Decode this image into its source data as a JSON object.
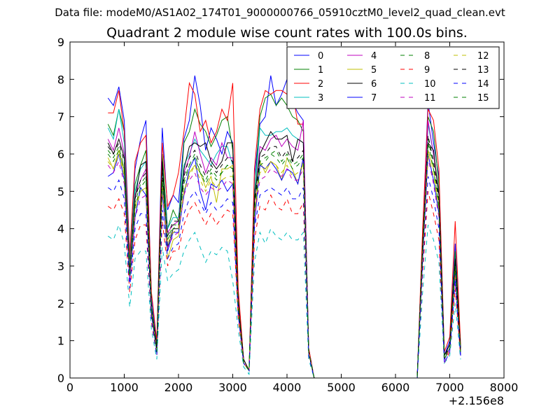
{
  "figure": {
    "suptitle": "Data file: modeM0/AS1A02_174T01_9000000766_05910cztM0_level2_quad_clean.evt"
  },
  "chart_data": {
    "type": "line",
    "title": "Quadrant 2 module wise count rates with 100.0s bins.",
    "xlabel": "",
    "ylabel": "",
    "xlim": [
      0,
      8000
    ],
    "ylim": [
      0,
      9
    ],
    "x_offset_label": "+2.156e8",
    "xticks": [
      0,
      1000,
      2000,
      3000,
      4000,
      5000,
      6000,
      7000,
      8000
    ],
    "xtick_labels": [
      "0",
      "1000",
      "2000",
      "3000",
      "4000",
      "5000",
      "6000",
      "7000",
      "8000"
    ],
    "yticks": [
      0,
      1,
      2,
      3,
      4,
      5,
      6,
      7,
      8,
      9
    ],
    "ytick_labels": [
      "0",
      "1",
      "2",
      "3",
      "4",
      "5",
      "6",
      "7",
      "8",
      "9"
    ],
    "grid": false,
    "legend_position": "top-right",
    "legend_columns": 4,
    "x": [
      700,
      800,
      900,
      1000,
      1100,
      1200,
      1300,
      1400,
      1500,
      1600,
      1700,
      1800,
      1900,
      2000,
      2100,
      2200,
      2300,
      2400,
      2500,
      2600,
      2700,
      2800,
      2900,
      3000,
      3100,
      3200,
      3300,
      3400,
      3500,
      3600,
      3700,
      3800,
      3900,
      4000,
      4100,
      4200,
      4300,
      4400,
      4500,
      4600,
      6400,
      6500,
      6600,
      6700,
      6800,
      6900,
      7000,
      7100,
      7200
    ],
    "series": [
      {
        "name": "0",
        "color": "#0000ff",
        "dash": "solid",
        "values": [
          7.5,
          7.3,
          7.8,
          6.9,
          3.3,
          5.6,
          6.4,
          6.9,
          2.2,
          0.9,
          6.7,
          4.5,
          4.9,
          4.7,
          6.4,
          6.9,
          8.1,
          7.3,
          6.1,
          6.7,
          6.4,
          6.0,
          6.6,
          6.3,
          2.3,
          0.5,
          0.2,
          5.4,
          6.8,
          7.0,
          8.1,
          7.3,
          7.6,
          8.0,
          7.4,
          7.1,
          6.9,
          0.8,
          0.0,
          0.0,
          0.0,
          3.8,
          7.4,
          6.3,
          5.4,
          0.6,
          1.0,
          3.6,
          0.8
        ]
      },
      {
        "name": "1",
        "color": "#008000",
        "dash": "solid",
        "values": [
          6.8,
          6.5,
          7.2,
          6.6,
          3.1,
          5.2,
          5.7,
          6.1,
          2.0,
          0.8,
          6.0,
          4.0,
          4.5,
          4.2,
          6.3,
          6.6,
          7.2,
          6.8,
          6.6,
          6.2,
          6.5,
          6.9,
          7.0,
          6.1,
          2.1,
          0.5,
          0.2,
          4.9,
          7.0,
          7.5,
          7.6,
          7.3,
          7.5,
          7.3,
          7.0,
          6.9,
          6.6,
          0.7,
          0.0,
          0.0,
          0.0,
          3.7,
          7.0,
          6.6,
          5.2,
          0.6,
          0.9,
          3.4,
          0.8
        ]
      },
      {
        "name": "2",
        "color": "#ff0000",
        "dash": "solid",
        "values": [
          7.1,
          7.1,
          7.7,
          6.6,
          3.3,
          5.8,
          6.3,
          6.5,
          2.3,
          1.0,
          6.3,
          4.6,
          4.9,
          5.5,
          6.6,
          7.9,
          7.6,
          6.6,
          6.9,
          6.3,
          6.6,
          7.2,
          6.9,
          7.9,
          2.4,
          0.5,
          0.2,
          5.6,
          7.2,
          7.7,
          7.6,
          7.7,
          7.7,
          7.6,
          7.7,
          6.8,
          6.8,
          0.8,
          0.0,
          0.0,
          0.0,
          4.0,
          7.2,
          6.9,
          5.6,
          0.7,
          1.1,
          4.2,
          0.9
        ]
      },
      {
        "name": "3",
        "color": "#00bfbf",
        "dash": "solid",
        "values": [
          6.7,
          6.4,
          7.2,
          6.3,
          3.0,
          5.0,
          5.6,
          5.8,
          2.0,
          0.8,
          5.6,
          4.0,
          4.3,
          4.3,
          5.7,
          6.0,
          6.4,
          6.1,
          5.9,
          5.7,
          6.0,
          6.2,
          6.2,
          5.7,
          2.0,
          0.4,
          0.2,
          4.8,
          6.7,
          6.5,
          6.5,
          6.6,
          6.6,
          6.7,
          6.5,
          6.4,
          6.3,
          0.7,
          0.0,
          0.0,
          0.0,
          3.5,
          6.8,
          6.0,
          5.0,
          0.6,
          0.9,
          3.2,
          0.7
        ]
      },
      {
        "name": "4",
        "color": "#bf00bf",
        "dash": "solid",
        "values": [
          6.4,
          6.1,
          6.7,
          6.0,
          2.9,
          4.9,
          5.3,
          5.6,
          1.9,
          0.8,
          5.3,
          3.9,
          4.1,
          4.2,
          5.5,
          5.9,
          6.6,
          6.0,
          5.5,
          5.9,
          5.7,
          6.3,
          5.9,
          5.9,
          2.0,
          0.4,
          0.2,
          4.7,
          6.2,
          6.1,
          6.4,
          6.5,
          6.2,
          6.4,
          6.2,
          6.1,
          6.9,
          0.7,
          0.0,
          0.0,
          0.0,
          3.5,
          6.9,
          6.0,
          4.9,
          0.6,
          0.9,
          3.1,
          0.7
        ]
      },
      {
        "name": "5",
        "color": "#bfbf00",
        "dash": "solid",
        "values": [
          5.9,
          5.6,
          6.1,
          5.5,
          2.7,
          4.6,
          5.0,
          5.1,
          1.8,
          0.7,
          5.1,
          3.2,
          3.7,
          3.8,
          5.0,
          5.5,
          5.7,
          5.5,
          5.1,
          5.4,
          4.7,
          5.6,
          5.6,
          5.7,
          1.9,
          0.4,
          0.2,
          4.4,
          5.8,
          5.5,
          5.8,
          5.7,
          5.3,
          5.9,
          5.6,
          5.2,
          5.8,
          0.7,
          0.0,
          0.0,
          0.0,
          3.3,
          6.1,
          5.6,
          4.5,
          0.5,
          0.8,
          2.9,
          0.7
        ]
      },
      {
        "name": "6",
        "color": "#000000",
        "dash": "solid",
        "values": [
          6.3,
          6.0,
          6.4,
          5.9,
          2.8,
          4.8,
          5.7,
          5.8,
          1.9,
          0.8,
          5.8,
          3.5,
          4.0,
          4.0,
          5.6,
          6.2,
          6.3,
          6.2,
          6.3,
          5.8,
          5.6,
          5.8,
          6.3,
          6.3,
          2.0,
          0.5,
          0.2,
          4.8,
          6.0,
          6.3,
          6.6,
          6.4,
          6.4,
          6.5,
          5.8,
          6.4,
          6.3,
          0.7,
          0.0,
          0.0,
          0.0,
          3.6,
          6.3,
          6.1,
          4.9,
          0.6,
          0.9,
          3.2,
          0.8
        ]
      },
      {
        "name": "7",
        "color": "#0000ff",
        "dash": "solid",
        "values": [
          5.4,
          5.5,
          6.0,
          5.3,
          2.6,
          4.3,
          5.1,
          4.9,
          1.7,
          0.7,
          5.0,
          3.4,
          3.9,
          3.9,
          4.9,
          5.6,
          5.9,
          5.0,
          4.5,
          5.2,
          5.1,
          5.3,
          5.0,
          5.2,
          1.8,
          0.4,
          0.2,
          4.1,
          5.7,
          5.6,
          5.8,
          5.6,
          5.3,
          5.6,
          5.5,
          5.2,
          5.9,
          0.7,
          0.0,
          0.0,
          0.0,
          3.2,
          6.0,
          5.3,
          4.4,
          0.5,
          0.8,
          2.8,
          0.6
        ]
      },
      {
        "name": "8",
        "color": "#008000",
        "dash": "dashed",
        "values": [
          6.1,
          5.9,
          6.2,
          5.6,
          2.8,
          4.7,
          5.2,
          5.4,
          1.8,
          0.7,
          5.3,
          3.7,
          4.1,
          4.1,
          5.3,
          5.7,
          6.0,
          5.5,
          5.3,
          5.6,
          5.4,
          5.5,
          5.7,
          5.6,
          1.9,
          0.4,
          0.2,
          4.6,
          5.8,
          5.9,
          6.0,
          6.1,
          5.8,
          6.0,
          5.7,
          5.8,
          6.0,
          0.7,
          0.0,
          0.0,
          0.0,
          3.4,
          6.4,
          5.7,
          4.7,
          0.5,
          0.8,
          3.0,
          0.7
        ]
      },
      {
        "name": "9",
        "color": "#ff0000",
        "dash": "dashed",
        "values": [
          4.6,
          4.5,
          4.8,
          4.4,
          2.3,
          3.7,
          4.1,
          4.1,
          1.5,
          0.6,
          4.2,
          3.0,
          3.4,
          3.4,
          4.1,
          4.5,
          4.7,
          4.4,
          4.1,
          4.4,
          4.1,
          4.3,
          4.5,
          4.4,
          1.6,
          0.4,
          0.2,
          3.7,
          4.6,
          4.5,
          4.9,
          4.6,
          4.5,
          4.8,
          4.4,
          4.4,
          4.7,
          0.6,
          0.0,
          0.0,
          0.0,
          2.8,
          5.0,
          4.4,
          3.7,
          0.4,
          0.7,
          2.4,
          0.6
        ]
      },
      {
        "name": "10",
        "color": "#00bfbf",
        "dash": "dashed",
        "values": [
          3.8,
          3.7,
          4.1,
          3.6,
          1.9,
          3.2,
          3.4,
          3.4,
          1.3,
          0.5,
          3.5,
          2.6,
          2.8,
          2.9,
          3.4,
          3.7,
          3.9,
          3.5,
          3.1,
          3.4,
          3.3,
          3.5,
          3.4,
          2.6,
          1.3,
          0.3,
          0.1,
          3.1,
          3.9,
          3.6,
          4.0,
          3.8,
          3.7,
          3.9,
          3.7,
          3.7,
          3.9,
          0.5,
          0.0,
          0.0,
          0.0,
          2.3,
          4.1,
          3.7,
          3.1,
          0.4,
          0.6,
          2.0,
          0.5
        ]
      },
      {
        "name": "11",
        "color": "#bf00bf",
        "dash": "dashed",
        "values": [
          5.7,
          5.5,
          5.8,
          5.2,
          2.6,
          4.3,
          4.8,
          4.9,
          1.7,
          0.7,
          4.9,
          3.5,
          3.8,
          3.9,
          4.9,
          5.3,
          5.5,
          5.1,
          4.9,
          5.1,
          5.0,
          5.1,
          5.3,
          5.2,
          1.8,
          0.4,
          0.2,
          4.3,
          5.3,
          5.4,
          5.6,
          5.5,
          5.4,
          5.6,
          5.3,
          5.3,
          5.6,
          0.7,
          0.0,
          0.0,
          0.0,
          3.2,
          5.9,
          5.2,
          4.3,
          0.4,
          0.8,
          2.8,
          0.6
        ]
      },
      {
        "name": "12",
        "color": "#bfbf00",
        "dash": "dashed",
        "values": [
          5.8,
          5.6,
          6.0,
          5.4,
          2.7,
          4.5,
          5.0,
          5.1,
          1.8,
          0.7,
          5.1,
          3.6,
          3.9,
          4.0,
          5.0,
          5.4,
          5.7,
          5.3,
          5.0,
          5.3,
          5.1,
          5.3,
          5.4,
          5.4,
          1.8,
          0.4,
          0.2,
          4.4,
          5.5,
          5.6,
          5.8,
          5.7,
          5.5,
          5.7,
          5.4,
          5.5,
          5.7,
          0.7,
          0.0,
          0.0,
          0.0,
          3.3,
          6.0,
          5.4,
          4.5,
          0.5,
          0.8,
          2.9,
          0.7
        ]
      },
      {
        "name": "13",
        "color": "#000000",
        "dash": "dashed",
        "values": [
          6.2,
          6.0,
          6.3,
          5.8,
          2.8,
          4.8,
          5.3,
          5.5,
          1.9,
          0.8,
          5.5,
          3.8,
          4.2,
          4.2,
          5.4,
          5.9,
          6.1,
          5.7,
          5.4,
          5.7,
          5.5,
          5.7,
          5.9,
          5.8,
          2.0,
          0.4,
          0.2,
          4.7,
          5.9,
          6.0,
          6.2,
          6.2,
          5.9,
          6.1,
          5.8,
          5.9,
          6.1,
          0.7,
          0.0,
          0.0,
          0.0,
          3.5,
          6.5,
          5.8,
          4.8,
          0.5,
          0.9,
          3.1,
          0.7
        ]
      },
      {
        "name": "14",
        "color": "#0000ff",
        "dash": "dashed",
        "values": [
          5.1,
          5.0,
          5.3,
          4.8,
          2.4,
          4.0,
          4.4,
          4.4,
          1.6,
          0.6,
          4.5,
          3.2,
          3.5,
          3.6,
          4.4,
          4.8,
          5.0,
          4.7,
          4.4,
          4.7,
          4.5,
          4.6,
          4.8,
          4.7,
          1.7,
          0.4,
          0.2,
          4.0,
          4.9,
          5.0,
          5.1,
          5.0,
          4.9,
          5.1,
          4.8,
          4.8,
          5.1,
          0.6,
          0.0,
          0.0,
          0.0,
          3.0,
          5.4,
          4.8,
          4.0,
          0.4,
          0.7,
          2.6,
          0.6
        ]
      },
      {
        "name": "15",
        "color": "#008000",
        "dash": "dashed",
        "values": [
          6.0,
          5.8,
          6.1,
          5.6,
          2.7,
          4.6,
          5.1,
          5.3,
          1.8,
          0.7,
          5.3,
          3.7,
          4.0,
          4.1,
          5.2,
          5.7,
          5.9,
          5.5,
          5.2,
          5.5,
          5.3,
          5.5,
          5.7,
          5.6,
          1.9,
          0.4,
          0.2,
          4.5,
          5.7,
          5.8,
          6.0,
          5.9,
          5.7,
          5.9,
          5.6,
          5.7,
          5.9,
          0.7,
          0.0,
          0.0,
          0.0,
          3.4,
          6.3,
          5.6,
          4.6,
          0.5,
          0.8,
          3.0,
          0.7
        ]
      }
    ]
  }
}
